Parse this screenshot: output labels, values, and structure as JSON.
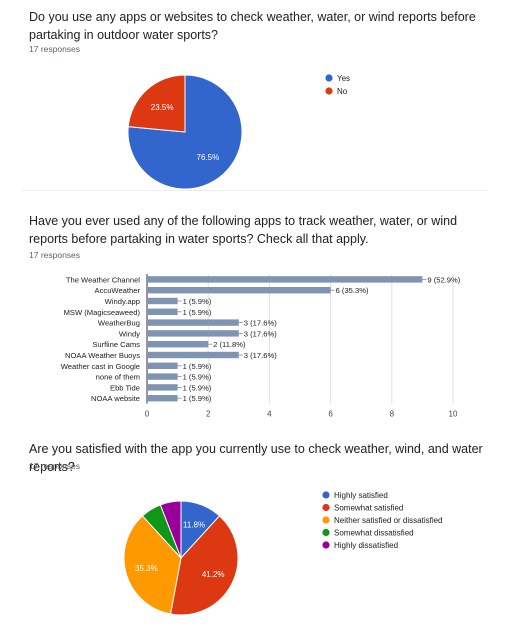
{
  "sections": [
    {
      "question": "Do you use any apps or websites to check weather, water, or wind reports before partaking in outdoor water sports?",
      "responses": "17 responses"
    },
    {
      "question": "Have you ever used any of the following apps to track weather, water, or wind reports before partaking in water sports? Check all that apply.",
      "responses": "17 responses"
    },
    {
      "question": "Are you satisfied with the app you currently use to check weather, wind, and water reports?",
      "responses": "17 responses"
    }
  ],
  "chart_data": [
    {
      "type": "pie",
      "title": "",
      "slices": [
        {
          "label": "Yes",
          "value": 76.5,
          "display": "76.5%",
          "color": "#3366cc"
        },
        {
          "label": "No",
          "value": 23.5,
          "display": "23.5%",
          "color": "#dc3912"
        }
      ],
      "legend_position": "right"
    },
    {
      "type": "bar",
      "orientation": "horizontal",
      "categories": [
        "The Weather Channel",
        "AccuWeather",
        "Windy.app",
        "MSW (Magicseaweed)",
        "WeatherBug",
        "Windy",
        "Surfline Cams",
        "NOAA Weather Buoys",
        "Weather cast in Google",
        "none of them",
        "Ebb Tide",
        "NOAA website"
      ],
      "values": [
        9,
        6,
        1,
        1,
        3,
        3,
        2,
        3,
        1,
        1,
        1,
        1
      ],
      "labels": [
        "9 (52.9%)",
        "6 (35.3%)",
        "1 (5.9%)",
        "1 (5.9%)",
        "3 (17.6%)",
        "3 (17.6%)",
        "2 (11.8%)",
        "3 (17.6%)",
        "1 (5.9%)",
        "1 (5.9%)",
        "1 (5.9%)",
        "1 (5.9%)"
      ],
      "xlim": [
        0,
        10
      ],
      "xticks": [
        0,
        2,
        4,
        6,
        8,
        10
      ],
      "bar_color": "#7f93b2",
      "grid": true
    },
    {
      "type": "pie",
      "title": "",
      "slices": [
        {
          "label": "Highly satisfied",
          "value": 11.8,
          "display": "11.8%",
          "color": "#3366cc"
        },
        {
          "label": "Somewhat satisfied",
          "value": 41.2,
          "display": "41.2%",
          "color": "#dc3912"
        },
        {
          "label": "Neither satisfied or dissatisfied",
          "value": 35.3,
          "display": "35.3%",
          "color": "#ff9900"
        },
        {
          "label": "Somewhat dissatisfied",
          "value": 5.9,
          "display": "",
          "color": "#109618"
        },
        {
          "label": "Highly dissatisfied",
          "value": 5.9,
          "display": "",
          "color": "#990099"
        }
      ],
      "legend_position": "right"
    }
  ]
}
